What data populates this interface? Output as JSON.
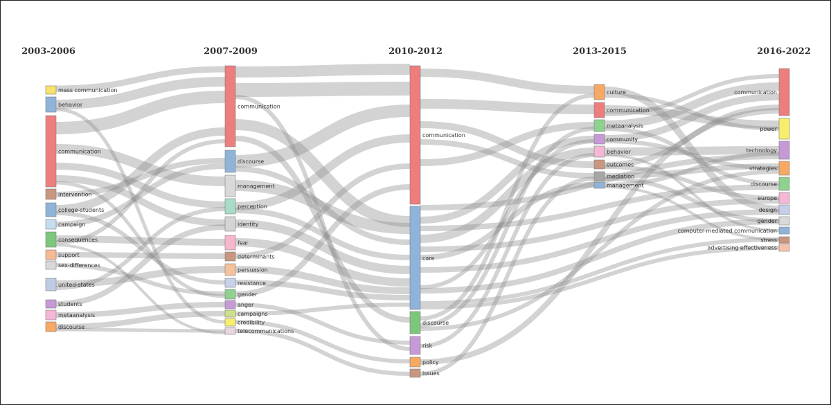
{
  "periods": [
    "2003-2006",
    "2007-2009",
    "2010-2012",
    "2013-2015",
    "2016-2022"
  ],
  "columns": [
    [
      {
        "label": "mass communication",
        "color": "#f7e26b"
      },
      {
        "label": "behavior",
        "color": "#8fb3d9"
      },
      {
        "label": "communication",
        "color": "#ee7d7d"
      },
      {
        "label": "intervention",
        "color": "#c9967f"
      },
      {
        "label": "college-students",
        "color": "#8fb3d9"
      },
      {
        "label": "campaign",
        "color": "#c6dcef"
      },
      {
        "label": "consequences",
        "color": "#7cc77c"
      },
      {
        "label": "support",
        "color": "#f7b994"
      },
      {
        "label": "sex-differences",
        "color": "#d9d9d9"
      },
      {
        "label": "united-states",
        "color": "#bfcbe3"
      },
      {
        "label": "students",
        "color": "#c59ad6"
      },
      {
        "label": "metaanalysis",
        "color": "#f5b7d5"
      },
      {
        "label": "discourse",
        "color": "#f7a862"
      }
    ],
    [
      {
        "label": "communication",
        "color": "#ee7d7d"
      },
      {
        "label": "discourse",
        "color": "#8fb3d9"
      },
      {
        "label": "management",
        "color": "#d9d9d9"
      },
      {
        "label": "perception",
        "color": "#a7dcc6"
      },
      {
        "label": "identity",
        "color": "#d4d4d4"
      },
      {
        "label": "fear",
        "color": "#f5b7c9"
      },
      {
        "label": "determinants",
        "color": "#c9967f"
      },
      {
        "label": "persuasion",
        "color": "#f7c29b"
      },
      {
        "label": "resistance",
        "color": "#c6d2ea"
      },
      {
        "label": "gender",
        "color": "#8fd18f"
      },
      {
        "label": "anger",
        "color": "#c59ad6"
      },
      {
        "label": "campaigns",
        "color": "#cfe08a"
      },
      {
        "label": "credibility",
        "color": "#f7ef6b"
      },
      {
        "label": "telecommunications",
        "color": "#e9d6e2"
      }
    ],
    [
      {
        "label": "communication",
        "color": "#ee7d7d"
      },
      {
        "label": "care",
        "color": "#8fb3d9"
      },
      {
        "label": "discourse",
        "color": "#7cc77c"
      },
      {
        "label": "risk",
        "color": "#c59ad6"
      },
      {
        "label": "policy",
        "color": "#f7a862"
      },
      {
        "label": "issues",
        "color": "#c9967f"
      }
    ],
    [
      {
        "label": "culture",
        "color": "#f7a862"
      },
      {
        "label": "communication",
        "color": "#ee7d7d"
      },
      {
        "label": "metaanalysis",
        "color": "#8fd18f"
      },
      {
        "label": "community",
        "color": "#c59ad6"
      },
      {
        "label": "behavior",
        "color": "#f5b7d5"
      },
      {
        "label": "outcomes",
        "color": "#c9967f"
      },
      {
        "label": "mediation",
        "color": "#a6a6a6"
      },
      {
        "label": "management",
        "color": "#8fb3d9"
      }
    ],
    [
      {
        "label": "communication",
        "color": "#ee7d7d"
      },
      {
        "label": "power",
        "color": "#f7ef6b"
      },
      {
        "label": "technology",
        "color": "#c59ad6"
      },
      {
        "label": "strategies",
        "color": "#f7a862"
      },
      {
        "label": "discourse",
        "color": "#8fd18f"
      },
      {
        "label": "europe",
        "color": "#f5b7d5"
      },
      {
        "label": "design",
        "color": "#c6cfea"
      },
      {
        "label": "gender",
        "color": "#d9d9d9"
      },
      {
        "label": "computer-mediated communication",
        "color": "#8fb3d9"
      },
      {
        "label": "stress",
        "color": "#c9967f"
      },
      {
        "label": "advertising effectiveness",
        "color": "#f7c2ad"
      }
    ]
  ]
}
